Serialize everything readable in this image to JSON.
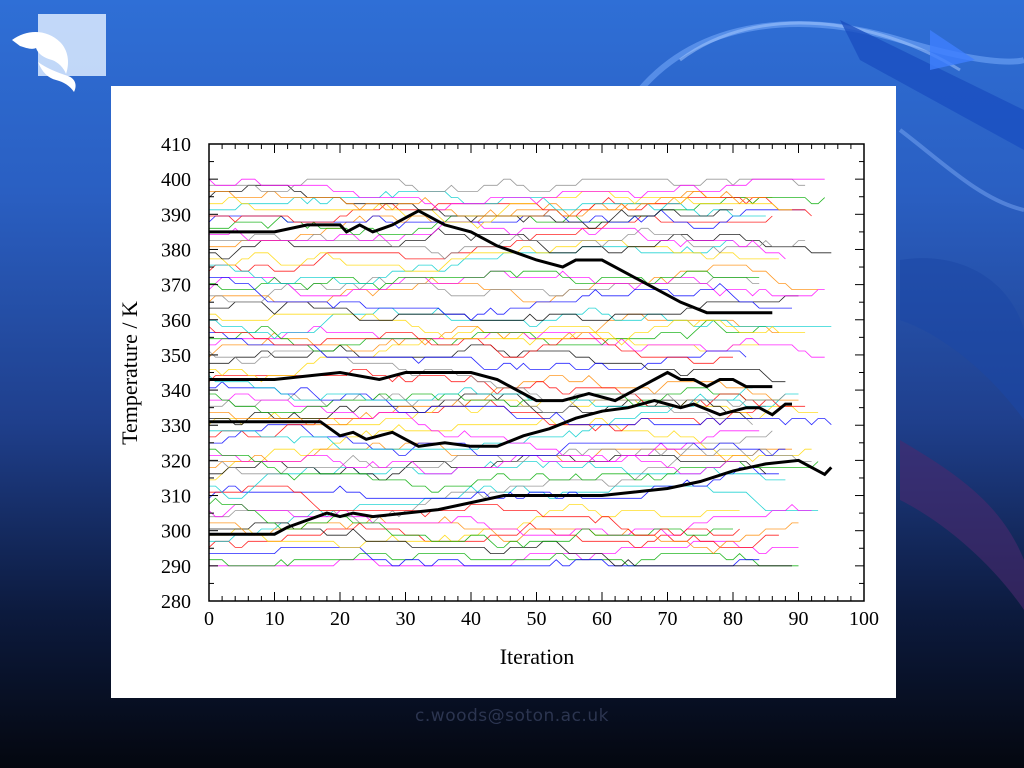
{
  "footer": {
    "email": "c.woods@soton.ac.uk"
  },
  "colors": {
    "background_top": "#2f6fd6",
    "background_bottom": "#04070f",
    "panel": "#ffffff",
    "highlight_trace": "#000000",
    "trace_palette": [
      "#ff00ff",
      "#00aa00",
      "#0000ff",
      "#ff0000",
      "#00cccc",
      "#ffd700",
      "#000000",
      "#ff8800",
      "#888888"
    ]
  },
  "icons": {
    "logo": "dolphin-logo-icon"
  },
  "chart_data": {
    "type": "line",
    "xlabel": "Iteration",
    "ylabel": "Temperature / K",
    "xlim": [
      0,
      100
    ],
    "ylim": [
      280,
      410
    ],
    "x_ticks": [
      0,
      10,
      20,
      30,
      40,
      50,
      60,
      70,
      80,
      90,
      100
    ],
    "y_ticks": [
      280,
      290,
      300,
      310,
      320,
      330,
      340,
      350,
      360,
      370,
      380,
      390,
      400,
      410
    ],
    "temperature_ladder_min": 290,
    "temperature_ladder_max": 400,
    "temperature_ladder_count": 64,
    "highlighted_series": [
      {
        "x": [
          0,
          10,
          15,
          20,
          21,
          23,
          25,
          28,
          30,
          32,
          34,
          36,
          40,
          44,
          50,
          54,
          56,
          60,
          64,
          68,
          72,
          76,
          80,
          86
        ],
        "y": [
          385,
          385,
          387,
          387,
          385,
          387,
          385,
          387,
          389,
          391,
          389,
          387,
          385,
          381,
          377,
          375,
          377,
          377,
          373,
          369,
          365,
          362,
          362,
          362
        ]
      },
      {
        "x": [
          0,
          10,
          20,
          26,
          30,
          40,
          44,
          46,
          50,
          54,
          58,
          62,
          66,
          68,
          70,
          72,
          74,
          76,
          78,
          80,
          82,
          86
        ],
        "y": [
          343,
          343,
          345,
          343,
          345,
          345,
          343,
          341,
          337,
          337,
          339,
          337,
          341,
          343,
          345,
          343,
          343,
          341,
          343,
          343,
          341,
          341
        ]
      },
      {
        "x": [
          0,
          10,
          17,
          20,
          22,
          24,
          28,
          32,
          36,
          40,
          44,
          48,
          52,
          56,
          60,
          64,
          68,
          72,
          74,
          78,
          82,
          84,
          86,
          88,
          89
        ],
        "y": [
          331,
          331,
          331,
          327,
          328,
          326,
          328,
          324,
          325,
          324,
          324,
          327,
          329,
          332,
          334,
          335,
          337,
          335,
          336,
          333,
          335,
          335,
          333,
          336,
          336
        ]
      },
      {
        "x": [
          0,
          10,
          12,
          15,
          18,
          20,
          22,
          25,
          30,
          35,
          40,
          45,
          50,
          55,
          60,
          65,
          70,
          75,
          80,
          85,
          90,
          92,
          94,
          95
        ],
        "y": [
          299,
          299,
          301,
          303,
          305,
          304,
          305,
          304,
          305,
          306,
          308,
          310,
          310,
          310,
          310,
          311,
          312,
          314,
          317,
          319,
          320,
          318,
          316,
          318
        ]
      }
    ]
  }
}
